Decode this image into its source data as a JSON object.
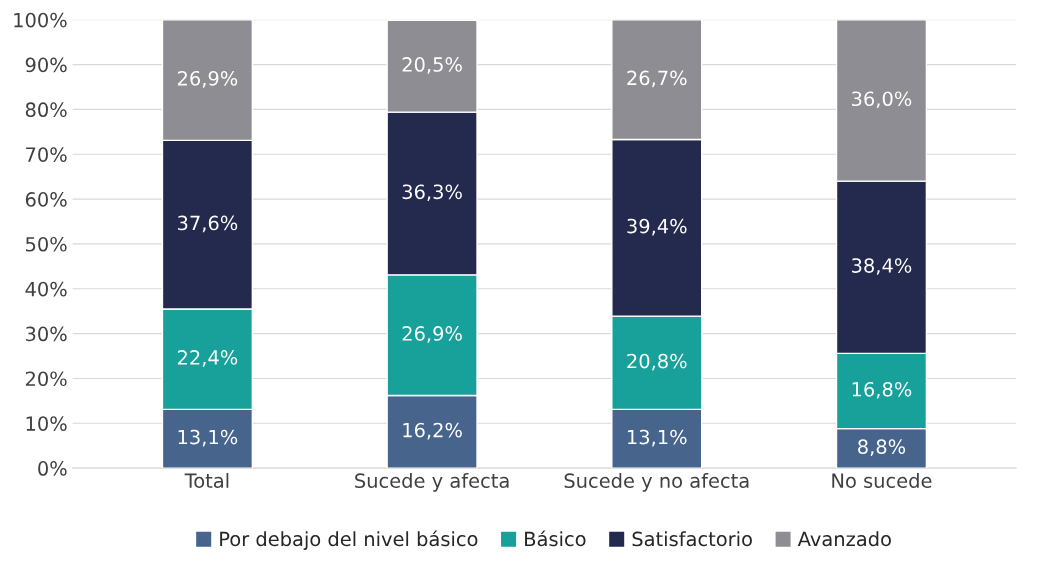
{
  "chart_data": {
    "type": "bar",
    "stacked": true,
    "categories": [
      "Total",
      "Sucede y afecta",
      "Sucede y no afecta",
      "No sucede"
    ],
    "series": [
      {
        "name": "Por debajo del nivel básico",
        "color": "#46648c",
        "values": [
          13.1,
          16.2,
          13.1,
          8.8
        ],
        "value_labels": [
          "13,1%",
          "16,2%",
          "13,1%",
          "8,8%"
        ]
      },
      {
        "name": "Básico",
        "color": "#18a09a",
        "values": [
          22.4,
          26.9,
          20.8,
          16.8
        ],
        "value_labels": [
          "22,4%",
          "26,9%",
          "20,8%",
          "16,8%"
        ]
      },
      {
        "name": "Satisfactorio",
        "color": "#232a4e",
        "values": [
          37.6,
          36.3,
          39.4,
          38.4
        ],
        "value_labels": [
          "37,6%",
          "36,3%",
          "39,4%",
          "38,4%"
        ]
      },
      {
        "name": "Avanzado",
        "color": "#8e8d93",
        "values": [
          26.9,
          20.5,
          26.7,
          36.0
        ],
        "value_labels": [
          "26,9%",
          "20,5%",
          "26,7%",
          "36,0%"
        ]
      }
    ],
    "ylim": [
      0,
      100
    ],
    "yticks": [
      {
        "value": 0,
        "label": "0%"
      },
      {
        "value": 10,
        "label": "10%"
      },
      {
        "value": 20,
        "label": "20%"
      },
      {
        "value": 30,
        "label": "30%"
      },
      {
        "value": 40,
        "label": "40%"
      },
      {
        "value": 50,
        "label": "50%"
      },
      {
        "value": 60,
        "label": "60%"
      },
      {
        "value": 70,
        "label": "70%"
      },
      {
        "value": 80,
        "label": "80%"
      },
      {
        "value": 90,
        "label": "90%"
      },
      {
        "value": 100,
        "label": "100%"
      }
    ],
    "grid": "y",
    "legend": "bottom"
  }
}
